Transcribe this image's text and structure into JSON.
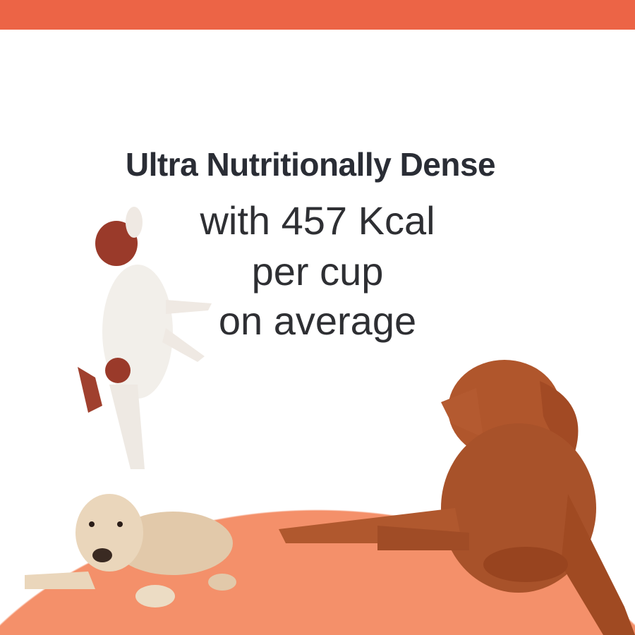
{
  "colors": {
    "accent": "#ec6446",
    "floor": "#f4906a",
    "text": "#2a2d35"
  },
  "headline": {
    "title": "Ultra Nutritionally Dense",
    "line1": "with 457 Kcal",
    "line2": "per cup",
    "line3": "on average"
  },
  "images": [
    "jumping-terrier",
    "golden-retriever-puppy",
    "vizsla-dog"
  ]
}
